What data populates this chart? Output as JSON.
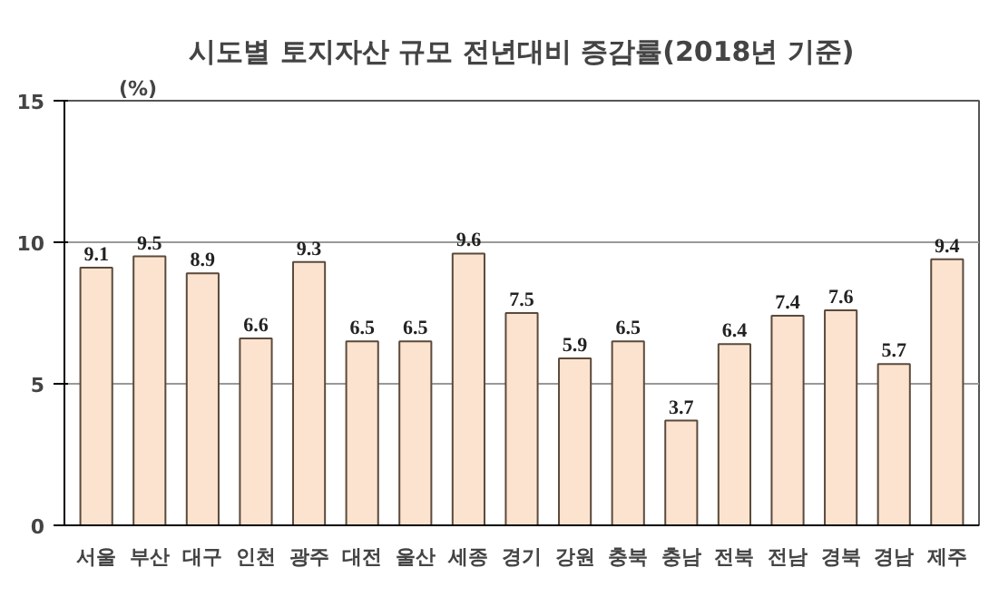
{
  "chart_data": {
    "type": "bar",
    "title": "시도별 토지자산 규모 전년대비 증감률(2018년 기준)",
    "ylabel": "(%)",
    "categories": [
      "서울",
      "부산",
      "대구",
      "인천",
      "광주",
      "대전",
      "울산",
      "세종",
      "경기",
      "강원",
      "충북",
      "충남",
      "전북",
      "전남",
      "경북",
      "경남",
      "제주"
    ],
    "values": [
      9.1,
      9.5,
      8.9,
      6.6,
      9.3,
      6.5,
      6.5,
      9.6,
      7.5,
      5.9,
      6.5,
      3.7,
      6.4,
      7.4,
      7.6,
      5.7,
      9.4
    ],
    "color": "#fbe3cf",
    "ylim": [
      0,
      15
    ],
    "yticks": [
      0,
      5,
      10,
      15
    ],
    "grid": "y",
    "data_labels": true
  }
}
